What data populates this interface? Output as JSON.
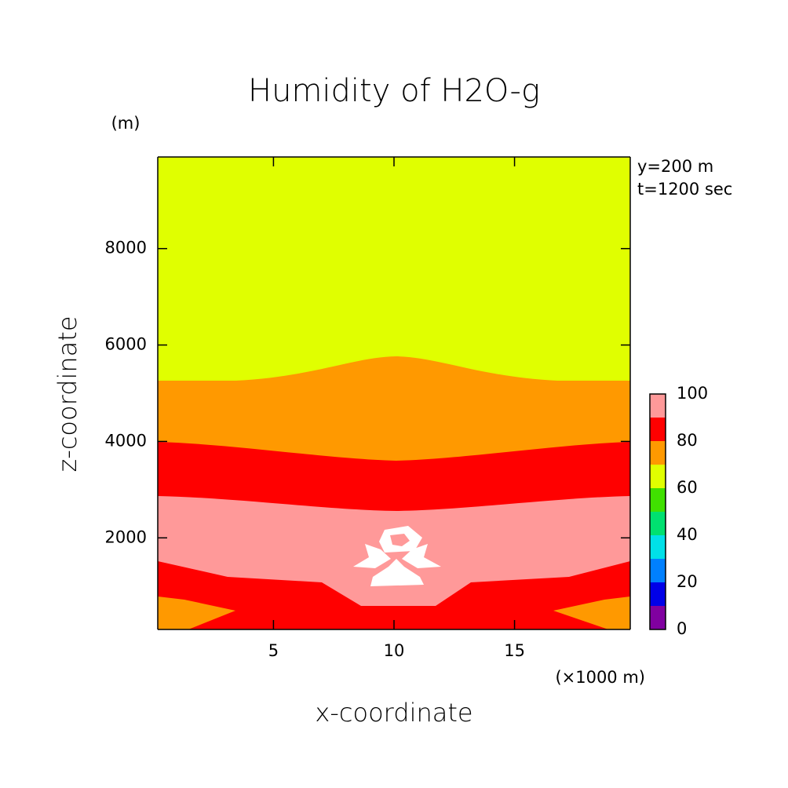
{
  "chart_data": {
    "type": "contour",
    "title": "Humidity of H2O-g",
    "xlabel": "x-coordinate",
    "ylabel": "z-coordinate",
    "x_unit": "(×1000 m)",
    "y_unit": "(m)",
    "annotations": [
      "y=200 m",
      "t=1200 sec"
    ],
    "xlim": [
      0.2,
      19.8
    ],
    "ylim": [
      100,
      9900
    ],
    "xticks": [
      5,
      10,
      15
    ],
    "yticks": [
      2000,
      4000,
      6000,
      8000
    ],
    "levels": [
      0,
      10,
      20,
      30,
      40,
      50,
      60,
      70,
      80,
      90,
      100
    ],
    "level_colors": [
      "#8000a0",
      "#0000e8",
      "#0080ff",
      "#00e0e8",
      "#00e070",
      "#40e000",
      "#e0ff00",
      "#ff9900",
      "#ff0000",
      "#ff9999"
    ],
    "colorbar_ticks": [
      0,
      20,
      40,
      60,
      80,
      100
    ]
  }
}
